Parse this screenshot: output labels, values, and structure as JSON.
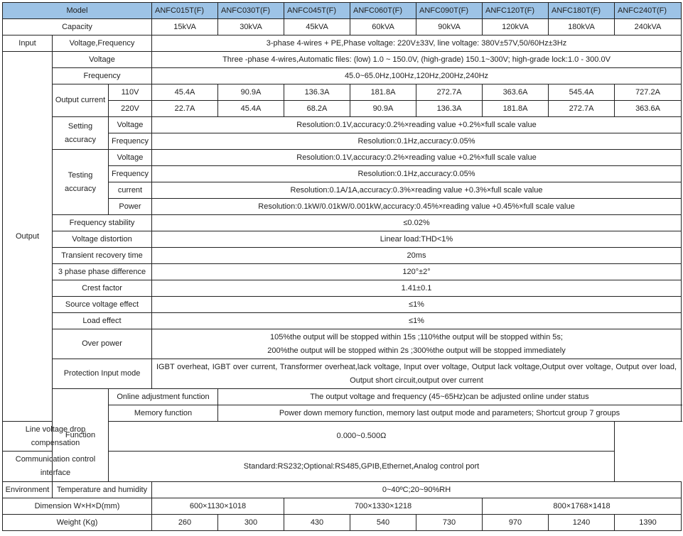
{
  "header": {
    "model_label": "Model",
    "models": [
      "ANFC015T(F)",
      "ANFC030T(F)",
      "ANFC045T(F)",
      "ANFC060T(F)",
      "ANFC090T(F)",
      "ANFC120T(F)",
      "ANFC180T(F)",
      "ANFC240T(F)"
    ]
  },
  "capacity": {
    "label": "Capacity",
    "values": [
      "15kVA",
      "30kVA",
      "45kVA",
      "60kVA",
      "90kVA",
      "120kVA",
      "180kVA",
      "240kVA"
    ]
  },
  "input": {
    "group": "Input",
    "label": "Voltage,Frequency",
    "value": "3-phase 4-wires + PE,Phase voltage: 220V±33V, line voltage: 380V±57V,50/60Hz±3Hz"
  },
  "output": {
    "group": "Output",
    "voltage": {
      "label": "Voltage",
      "value": "Three -phase 4-wires,Automatic files: (low) 1.0 ~ 150.0V, (high-grade) 150.1~300V; high-grade lock:1.0 - 300.0V"
    },
    "frequency": {
      "label": "Frequency",
      "value": "45.0~65.0Hz,100Hz,120Hz,200Hz,240Hz"
    },
    "current": {
      "label": "Output current",
      "v110": {
        "label": "110V",
        "values": [
          "45.4A",
          "90.9A",
          "136.3A",
          "181.8A",
          "272.7A",
          "363.6A",
          "545.4A",
          "727.2A"
        ]
      },
      "v220": {
        "label": "220V",
        "values": [
          "22.7A",
          "45.4A",
          "68.2A",
          "90.9A",
          "136.3A",
          "181.8A",
          "272.7A",
          "363.6A"
        ]
      }
    },
    "setting": {
      "label_1": "Setting",
      "label_2": "accuracy",
      "voltage": {
        "label": "Voltage",
        "value": "Resolution:0.1V,accuracy:0.2%×reading value +0.2%×full scale value"
      },
      "frequency": {
        "label": "Frequency",
        "value": "Resolution:0.1Hz,accuracy:0.05%"
      }
    },
    "testing": {
      "label_1": "Testing",
      "label_2": "accuracy",
      "voltage": {
        "label": "Voltage",
        "value": "Resolution:0.1V,accuracy:0.2%×reading value +0.2%×full scale value"
      },
      "frequency": {
        "label": "Frequency",
        "value": "Resolution:0.1Hz,accuracy:0.05%"
      },
      "current": {
        "label": "current",
        "value": "Resolution:0.1A/1A,accuracy:0.3%×reading value +0.3%×full scale value"
      },
      "power": {
        "label": "Power",
        "value": "Resolution:0.1kW/0.01kW/0.001kW,accuracy:0.45%×reading value +0.45%×full scale value"
      }
    },
    "freq_stability": {
      "label": "Frequency stability",
      "value": "≤0.02%"
    },
    "distortion": {
      "label": "Voltage distortion",
      "value": "Linear load:THD<1%"
    },
    "transient": {
      "label": "Transient recovery time",
      "value": "20ms"
    },
    "phase_diff": {
      "label": "3 phase phase difference",
      "value": "120°±2°"
    },
    "crest": {
      "label": "Crest factor",
      "value": "1.41±0.1"
    },
    "source_effect": {
      "label": "Source voltage effect",
      "value": "≤1%"
    },
    "load_effect": {
      "label": "Load effect",
      "value": "≤1%"
    },
    "over_power": {
      "label": "Over power",
      "line_1": "105%the output will be stopped within 15s ;110%the output will be stopped within 5s;",
      "line_2": "200%the output will be stopped within 2s ;300%the output will be stopped immediately"
    },
    "protection": {
      "label": "Protection Input mode",
      "value": "IGBT overheat, IGBT over current, Transformer overheat,lack voltage, Input over voltage, Output lack voltage,Output over voltage, Output over load, Output short circuit,output over current"
    }
  },
  "function": {
    "group": "Function",
    "online": {
      "label": "Online adjustment function",
      "value": "The output voltage and frequency (45~65Hz)can be adjusted online under status"
    },
    "memory": {
      "label": "Memory function",
      "value": "Power down memory function, memory last output mode and parameters; Shortcut group 7 groups"
    },
    "line_drop": {
      "label_1": "Line voltage drop",
      "label_2": "compensation",
      "value": "0.000~0.500Ω"
    },
    "comm": {
      "label_1": "Communication control",
      "label_2": "interface",
      "value": "Standard:RS232;Optional:RS485,GPIB,Ethernet,Analog control port"
    }
  },
  "environment": {
    "group": "Environment",
    "label": "Temperature and humidity",
    "value": "0~40ºC;20~90%RH"
  },
  "dimension": {
    "label": "Dimension W×H×D(mm)",
    "values": [
      "600×1130×1018",
      "700×1330×1218",
      "800×1768×1418"
    ]
  },
  "weight": {
    "label": "Weight (Kg)",
    "values": [
      "260",
      "300",
      "430",
      "540",
      "730",
      "970",
      "1240",
      "1390"
    ]
  },
  "colors": {
    "header_bg": "#9dc3e6",
    "border": "#222222"
  }
}
